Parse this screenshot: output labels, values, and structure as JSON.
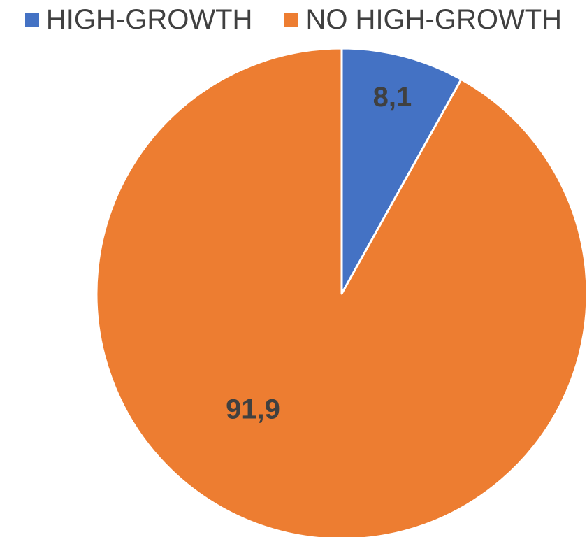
{
  "chart_data": {
    "type": "pie",
    "categories": [
      "HIGH-GROWTH",
      "NO HIGH-GROWTH"
    ],
    "values": [
      8.1,
      91.9
    ],
    "data_labels": [
      "8,1",
      "91,9"
    ],
    "colors": [
      "#4472C4",
      "#ED7D31"
    ],
    "legend_position": "top",
    "start_angle": "12 o'clock, clockwise",
    "title": ""
  }
}
